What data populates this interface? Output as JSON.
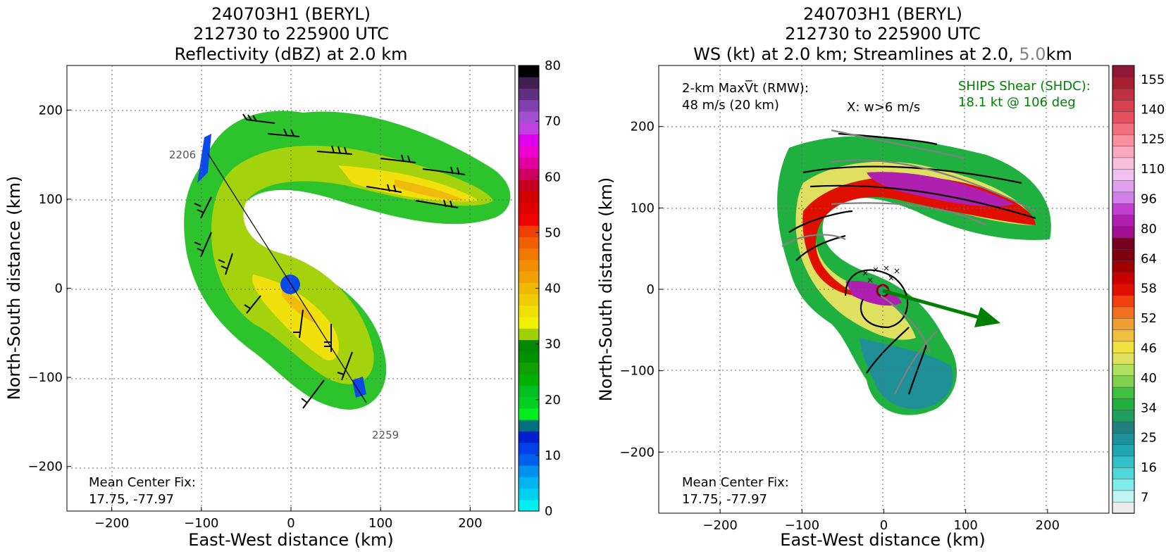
{
  "chart_data": [
    {
      "type": "heatmap",
      "title_lines": [
        "240703H1 (BERYL)",
        "212730 to 225900 UTC",
        "Reflectivity (dBZ) at 2.0 km"
      ],
      "xlabel": "East-West distance (km)",
      "ylabel": "North-South distance (km)",
      "xlim": [
        -250,
        250
      ],
      "ylim": [
        -250,
        250
      ],
      "xticks": [
        -200,
        -100,
        0,
        100,
        200
      ],
      "yticks": [
        -200,
        -100,
        0,
        100,
        200
      ],
      "xtick_labels": [
        "−200",
        "−100",
        "0",
        "100",
        "200"
      ],
      "ytick_labels": [
        "−200",
        "−100",
        "0",
        "100",
        "200"
      ],
      "grid": true,
      "colorbar": {
        "min": 0,
        "max": 80,
        "ticks": [
          0,
          10,
          20,
          30,
          40,
          50,
          60,
          70,
          80
        ],
        "colors": [
          "#00eeee",
          "#00d0f0",
          "#00b4f0",
          "#0090f0",
          "#0060ee",
          "#0040e8",
          "#0020d0",
          "#007080",
          "#00ee20",
          "#00d020",
          "#00c020",
          "#00b000",
          "#10a000",
          "#009000",
          "#008800",
          "#a0d000",
          "#f0f000",
          "#f0e000",
          "#f0cc00",
          "#f0b800",
          "#f0a000",
          "#f09000",
          "#f07800",
          "#f06000",
          "#f04000",
          "#f00000",
          "#e00000",
          "#d00000",
          "#c80020",
          "#d00060",
          "#e000a0",
          "#f000d0",
          "#e000f0",
          "#c040e0",
          "#a050d0",
          "#8040b0",
          "#603080",
          "#402050",
          "#000000"
        ]
      },
      "annotations": {
        "center_fix_label": "Mean Center Fix:",
        "center_fix_value": "17.75, -77.97",
        "track_start_time": "2206",
        "track_end_time": "2259"
      }
    },
    {
      "type": "heatmap",
      "title_lines": [
        "240703H1 (BERYL)",
        "212730 to 225900 UTC"
      ],
      "title_line3_parts": [
        "WS (kt) at 2.0 km; Streamlines at 2.0, ",
        "5.0",
        "km"
      ],
      "xlabel": "East-West distance (km)",
      "ylabel": "North-South distance (km)",
      "xlim": [
        -275,
        275
      ],
      "ylim": [
        -275,
        275
      ],
      "xticks": [
        -200,
        -100,
        0,
        100,
        200
      ],
      "yticks": [
        -200,
        -100,
        0,
        100,
        200
      ],
      "xtick_labels": [
        "−200",
        "−100",
        "0",
        "100",
        "200"
      ],
      "ytick_labels": [
        "−200",
        "−100",
        "0",
        "100",
        "200"
      ],
      "grid": true,
      "colorbar": {
        "ticks": [
          "7",
          "16",
          "25",
          "34",
          "40",
          "46",
          "52",
          "58",
          "64",
          "80",
          "96",
          "110",
          "125",
          "140",
          "155"
        ],
        "colors": [
          "#ececec",
          "#c0f4f4",
          "#80ecec",
          "#50d8d8",
          "#30c0c8",
          "#20a8b0",
          "#209098",
          "#208080",
          "#20a060",
          "#20b040",
          "#40c040",
          "#80d050",
          "#b0e060",
          "#e0e060",
          "#f0e040",
          "#f0c040",
          "#f0a030",
          "#f07020",
          "#f04010",
          "#e01000",
          "#c80000",
          "#a00000",
          "#800010",
          "#780020",
          "#a01090",
          "#b020b0",
          "#c040d0",
          "#d080e8",
          "#e0a0f0",
          "#f0c0f0",
          "#f8c0d8",
          "#f8a8c0",
          "#f890a0",
          "#f07080",
          "#e85060",
          "#d84050",
          "#c03040",
          "#a82030",
          "#901838"
        ],
        "legend_ticks_note": ""
      },
      "annotations": {
        "max_vt_label": "2-km MaxV̅t (RMW):",
        "max_vt_value": "48 m/s (20 km)",
        "w_label": "X: w>6 m/s",
        "shear_label": "SHIPS Shear (SHDC):",
        "shear_value": "18.1 kt @ 106 deg",
        "center_fix_label": "Mean Center Fix:",
        "center_fix_value": "17.75, -77.97"
      },
      "shear_vector": {
        "direction_deg": 106,
        "speed_kt": 18.1
      }
    }
  ],
  "colors": {
    "shear": "#008000",
    "streamline_2km": "#000000",
    "streamline_5km": "#808080",
    "grid": "#666666"
  }
}
